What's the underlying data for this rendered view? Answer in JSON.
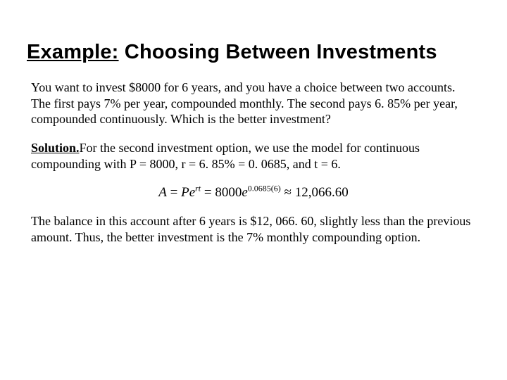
{
  "title": {
    "example_word": "Example:",
    "rest": " Choosing Between Investments",
    "font_family": "Arial",
    "font_size_pt": 22,
    "color": "#000000"
  },
  "problem": {
    "text": "You want to invest $8000 for 6 years, and you have a choice between two accounts. The first pays 7% per year, compounded monthly. The second pays 6. 85% per year, compounded continuously. Which is the better investment?",
    "font_size_pt": 14
  },
  "solution_intro": {
    "label": "Solution.",
    "text": "For the second investment option, we use the model for continuous compounding with P = 8000, r = 6. 85% = 0. 0685, and t = 6.",
    "font_size_pt": 14
  },
  "formula": {
    "lhs_A": "A",
    "eq1": " = ",
    "P": "P",
    "e1": "e",
    "rt": "rt",
    "eq2": " = ",
    "coeff": "8000",
    "e2": "e",
    "exp": "0.0685(6)",
    "approx": " ≈ ",
    "result": "12,066.60",
    "font_size_pt": 14
  },
  "conclusion": {
    "text": "The balance in this account after 6 years is $12, 066. 60, slightly less than the previous amount. Thus, the better investment is the 7% monthly compounding option.",
    "font_size_pt": 14
  },
  "colors": {
    "background": "#ffffff",
    "text": "#000000"
  }
}
